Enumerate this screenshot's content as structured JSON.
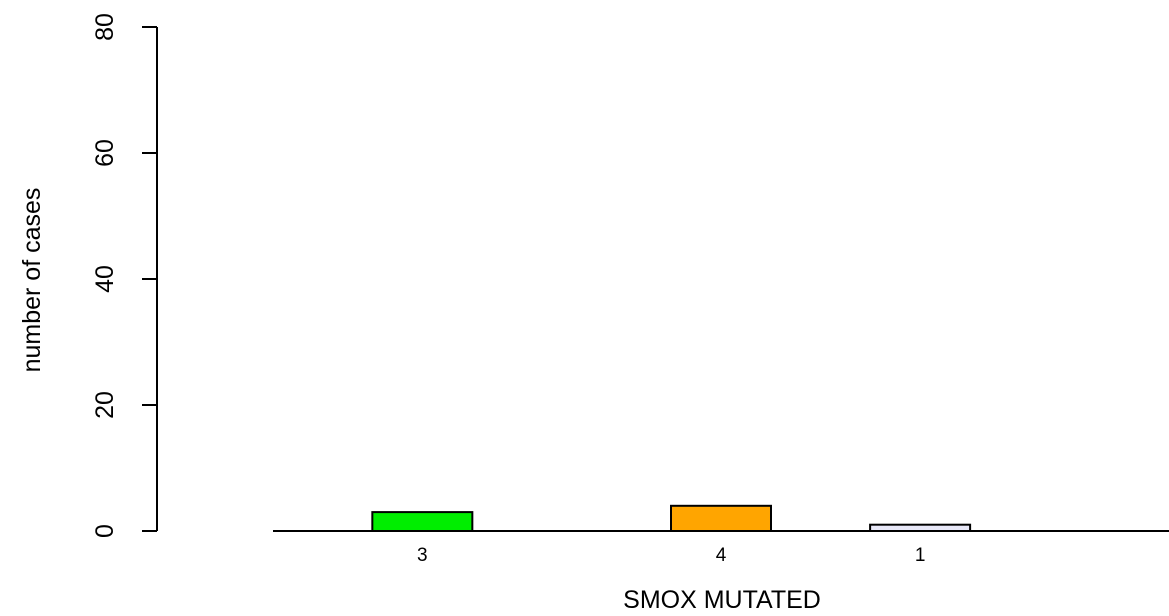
{
  "chart_data": {
    "type": "bar",
    "title": "",
    "xlabel": "SMOX MUTATED",
    "ylabel": "number of cases",
    "ylim": [
      0,
      80
    ],
    "yticks": [
      0,
      20,
      40,
      60,
      80
    ],
    "grid": false,
    "bars": [
      {
        "label": "3",
        "value": 3,
        "color": "#00ee00",
        "slot": 1
      },
      {
        "label": "4",
        "value": 4,
        "color": "#ffa500",
        "slot": 4
      },
      {
        "label": "1",
        "value": 1,
        "color": "#e8e8f8",
        "slot": 6
      }
    ],
    "slot_count": 9
  }
}
